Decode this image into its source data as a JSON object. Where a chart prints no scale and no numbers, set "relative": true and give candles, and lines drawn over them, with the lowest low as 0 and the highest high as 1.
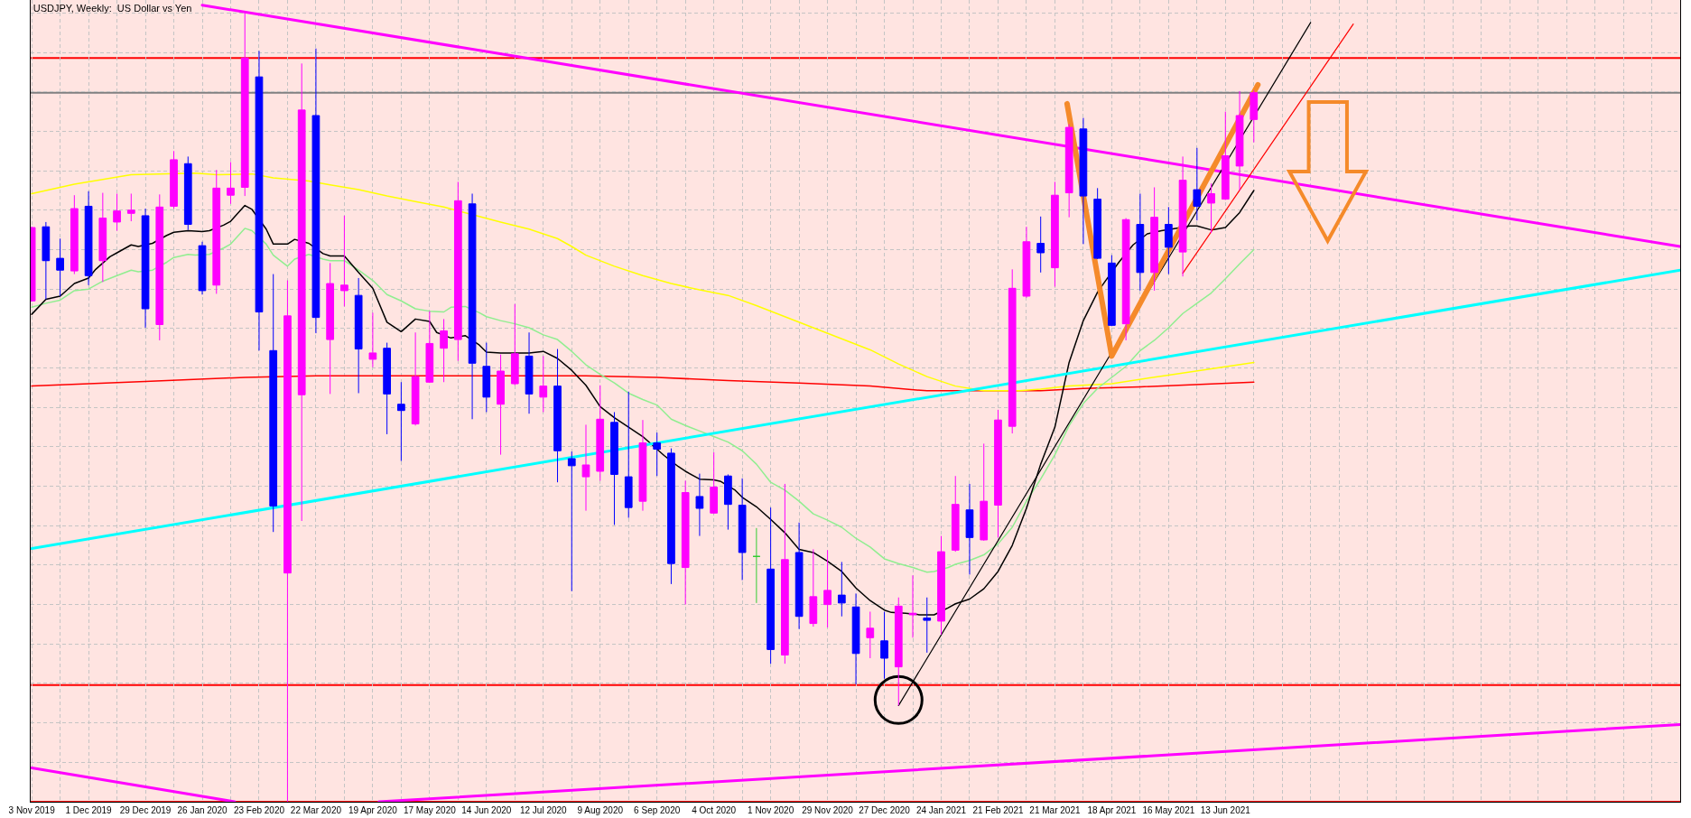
{
  "chart_data": {
    "type": "candlestick",
    "title": "USDJPY, Weekly:  US Dollar vs Yen",
    "relative": true,
    "grid": true,
    "tick_labels": "x",
    "xlim": [
      "2019-11-02T12:00",
      "2022-01-23"
    ],
    "xticks": [
      {
        "value": "2019-11-03",
        "label": "3 Nov 2019"
      },
      {
        "value": "2019-11-17",
        "label": null
      },
      {
        "value": "2019-12-01",
        "label": "1 Dec 2019"
      },
      {
        "value": "2019-12-15",
        "label": null
      },
      {
        "value": "2019-12-29",
        "label": "29 Dec 2019"
      },
      {
        "value": "2020-01-12",
        "label": null
      },
      {
        "value": "2020-01-26",
        "label": "26 Jan 2020"
      },
      {
        "value": "2020-02-09",
        "label": null
      },
      {
        "value": "2020-02-23",
        "label": "23 Feb 2020"
      },
      {
        "value": "2020-03-08",
        "label": null
      },
      {
        "value": "2020-03-22",
        "label": "22 Mar 2020"
      },
      {
        "value": "2020-04-05",
        "label": null
      },
      {
        "value": "2020-04-19",
        "label": "19 Apr 2020"
      },
      {
        "value": "2020-05-03",
        "label": null
      },
      {
        "value": "2020-05-17",
        "label": "17 May 2020"
      },
      {
        "value": "2020-05-31",
        "label": null
      },
      {
        "value": "2020-06-14",
        "label": "14 Jun 2020"
      },
      {
        "value": "2020-06-28",
        "label": null
      },
      {
        "value": "2020-07-12",
        "label": "12 Jul 2020"
      },
      {
        "value": "2020-07-26",
        "label": null
      },
      {
        "value": "2020-08-09",
        "label": "9 Aug 2020"
      },
      {
        "value": "2020-08-23",
        "label": null
      },
      {
        "value": "2020-09-06",
        "label": "6 Sep 2020"
      },
      {
        "value": "2020-09-20",
        "label": null
      },
      {
        "value": "2020-10-04",
        "label": "4 Oct 2020"
      },
      {
        "value": "2020-10-18",
        "label": null
      },
      {
        "value": "2020-11-01",
        "label": "1 Nov 2020"
      },
      {
        "value": "2020-11-15",
        "label": null
      },
      {
        "value": "2020-11-29",
        "label": "29 Nov 2020"
      },
      {
        "value": "2020-12-13",
        "label": null
      },
      {
        "value": "2020-12-27",
        "label": "27 Dec 2020"
      },
      {
        "value": "2021-01-10",
        "label": null
      },
      {
        "value": "2021-01-24",
        "label": "24 Jan 2021"
      },
      {
        "value": "2021-02-07",
        "label": null
      },
      {
        "value": "2021-02-21",
        "label": "21 Feb 2021"
      },
      {
        "value": "2021-03-07",
        "label": null
      },
      {
        "value": "2021-03-21",
        "label": "21 Mar 2021"
      },
      {
        "value": "2021-04-04",
        "label": null
      },
      {
        "value": "2021-04-18",
        "label": "18 Apr 2021"
      },
      {
        "value": "2021-05-02",
        "label": null
      },
      {
        "value": "2021-05-16",
        "label": "16 May 2021"
      },
      {
        "value": "2021-05-30",
        "label": null
      },
      {
        "value": "2021-06-13",
        "label": "13 Jun 2021"
      },
      {
        "value": "2021-06-27",
        "label": null
      },
      {
        "value": "2021-07-11",
        "label": null
      },
      {
        "value": "2021-07-25",
        "label": null
      },
      {
        "value": "2021-08-08",
        "label": null
      },
      {
        "value": "2021-08-22",
        "label": null
      },
      {
        "value": "2021-09-05",
        "label": null
      },
      {
        "value": "2021-09-19",
        "label": null
      },
      {
        "value": "2021-10-03",
        "label": null
      },
      {
        "value": "2021-10-17",
        "label": null
      },
      {
        "value": "2021-10-31",
        "label": null
      },
      {
        "value": "2021-11-14",
        "label": null
      },
      {
        "value": "2021-11-28",
        "label": null
      },
      {
        "value": "2021-12-12",
        "label": null
      },
      {
        "value": "2021-12-26",
        "label": null
      },
      {
        "value": "2022-01-09",
        "label": null
      }
    ],
    "x": [
      "2019-11-03",
      "2019-11-10",
      "2019-11-17",
      "2019-11-24",
      "2019-12-01",
      "2019-12-08",
      "2019-12-15",
      "2019-12-22",
      "2019-12-29",
      "2020-01-05",
      "2020-01-12",
      "2020-01-19",
      "2020-01-26",
      "2020-02-02",
      "2020-02-09",
      "2020-02-16",
      "2020-02-23",
      "2020-03-01",
      "2020-03-08",
      "2020-03-15",
      "2020-03-22",
      "2020-03-29",
      "2020-04-05",
      "2020-04-12",
      "2020-04-19",
      "2020-04-26",
      "2020-05-03",
      "2020-05-10",
      "2020-05-17",
      "2020-05-24",
      "2020-05-31",
      "2020-06-07",
      "2020-06-14",
      "2020-06-21",
      "2020-06-28",
      "2020-07-05",
      "2020-07-12",
      "2020-07-19",
      "2020-07-26",
      "2020-08-02",
      "2020-08-09",
      "2020-08-16",
      "2020-08-23",
      "2020-08-30",
      "2020-09-06",
      "2020-09-13",
      "2020-09-20",
      "2020-09-27",
      "2020-10-04",
      "2020-10-11",
      "2020-10-18",
      "2020-10-25",
      "2020-11-01",
      "2020-11-08",
      "2020-11-15",
      "2020-11-22",
      "2020-11-29",
      "2020-12-06",
      "2020-12-13",
      "2020-12-20",
      "2020-12-27",
      "2021-01-03",
      "2021-01-10",
      "2021-01-17",
      "2021-01-24",
      "2021-01-31",
      "2021-02-07",
      "2021-02-14",
      "2021-02-21",
      "2021-02-28",
      "2021-03-07",
      "2021-03-14",
      "2021-03-21",
      "2021-03-28",
      "2021-04-04",
      "2021-04-11",
      "2021-04-18",
      "2021-04-25",
      "2021-05-02",
      "2021-05-09",
      "2021-05-16",
      "2021-05-23",
      "2021-05-30",
      "2021-06-06",
      "2021-06-13",
      "2021-06-20",
      "2021-06-27"
    ],
    "ohlc": [
      [
        0.635,
        0.729,
        0.634,
        0.728
      ],
      [
        0.729,
        0.735,
        0.637,
        0.686
      ],
      [
        0.689,
        0.714,
        0.641,
        0.674
      ],
      [
        0.673,
        0.769,
        0.669,
        0.752
      ],
      [
        0.755,
        0.774,
        0.655,
        0.667
      ],
      [
        0.686,
        0.772,
        0.659,
        0.74
      ],
      [
        0.735,
        0.771,
        0.724,
        0.749
      ],
      [
        0.746,
        0.771,
        0.736,
        0.75
      ],
      [
        0.743,
        0.752,
        0.601,
        0.625
      ],
      [
        0.605,
        0.77,
        0.585,
        0.754
      ],
      [
        0.755,
        0.825,
        0.752,
        0.814
      ],
      [
        0.809,
        0.818,
        0.725,
        0.732
      ],
      [
        0.705,
        0.71,
        0.643,
        0.648
      ],
      [
        0.655,
        0.801,
        0.644,
        0.778
      ],
      [
        0.769,
        0.811,
        0.758,
        0.778
      ],
      [
        0.779,
        1.0,
        0.768,
        0.943
      ],
      [
        0.919,
        0.952,
        0.572,
        0.621
      ],
      [
        0.572,
        0.669,
        0.342,
        0.375
      ],
      [
        0.29,
        0.661,
        0.0,
        0.616
      ],
      [
        0.516,
        0.936,
        0.356,
        0.877
      ],
      [
        0.87,
        0.955,
        0.594,
        0.614
      ],
      [
        0.586,
        0.683,
        0.517,
        0.657
      ],
      [
        0.648,
        0.743,
        0.628,
        0.655
      ],
      [
        0.642,
        0.664,
        0.518,
        0.574
      ],
      [
        0.561,
        0.62,
        0.551,
        0.569
      ],
      [
        0.575,
        0.582,
        0.466,
        0.517
      ],
      [
        0.504,
        0.532,
        0.432,
        0.496
      ],
      [
        0.479,
        0.595,
        0.477,
        0.539
      ],
      [
        0.532,
        0.622,
        0.531,
        0.581
      ],
      [
        0.575,
        0.612,
        0.532,
        0.597
      ],
      [
        0.586,
        0.786,
        0.559,
        0.762
      ],
      [
        0.758,
        0.771,
        0.485,
        0.556
      ],
      [
        0.552,
        0.582,
        0.494,
        0.513
      ],
      [
        0.504,
        0.567,
        0.44,
        0.546
      ],
      [
        0.53,
        0.631,
        0.528,
        0.568
      ],
      [
        0.565,
        0.595,
        0.492,
        0.517
      ],
      [
        0.513,
        0.565,
        0.494,
        0.527
      ],
      [
        0.527,
        0.574,
        0.405,
        0.445
      ],
      [
        0.435,
        0.444,
        0.267,
        0.426
      ],
      [
        0.412,
        0.478,
        0.369,
        0.427
      ],
      [
        0.419,
        0.528,
        0.407,
        0.485
      ],
      [
        0.481,
        0.494,
        0.351,
        0.415
      ],
      [
        0.412,
        0.52,
        0.36,
        0.373
      ],
      [
        0.381,
        0.484,
        0.369,
        0.455
      ],
      [
        0.455,
        0.468,
        0.413,
        0.447
      ],
      [
        0.442,
        0.448,
        0.276,
        0.302
      ],
      [
        0.297,
        0.407,
        0.25,
        0.392
      ],
      [
        0.387,
        0.416,
        0.337,
        0.372
      ],
      [
        0.366,
        0.443,
        0.365,
        0.399
      ],
      [
        0.413,
        0.415,
        0.345,
        0.377
      ],
      [
        0.376,
        0.41,
        0.281,
        0.316
      ],
      [
        0.311,
        0.347,
        0.252,
        0.311
      ],
      [
        0.295,
        0.373,
        0.175,
        0.193
      ],
      [
        0.186,
        0.403,
        0.175,
        0.307
      ],
      [
        0.316,
        0.354,
        0.219,
        0.235
      ],
      [
        0.226,
        0.32,
        0.222,
        0.26
      ],
      [
        0.25,
        0.319,
        0.221,
        0.268
      ],
      [
        0.262,
        0.304,
        0.235,
        0.252
      ],
      [
        0.247,
        0.264,
        0.149,
        0.188
      ],
      [
        0.208,
        0.241,
        0.182,
        0.22
      ],
      [
        0.204,
        0.241,
        0.156,
        0.182
      ],
      [
        0.171,
        0.259,
        0.122,
        0.248
      ],
      [
        0.237,
        0.287,
        0.208,
        0.239
      ],
      [
        0.233,
        0.259,
        0.189,
        0.23
      ],
      [
        0.229,
        0.337,
        0.212,
        0.317
      ],
      [
        0.319,
        0.413,
        0.317,
        0.377
      ],
      [
        0.37,
        0.403,
        0.288,
        0.335
      ],
      [
        0.332,
        0.454,
        0.331,
        0.381
      ],
      [
        0.376,
        0.497,
        0.335,
        0.484
      ],
      [
        0.476,
        0.675,
        0.467,
        0.651
      ],
      [
        0.641,
        0.729,
        0.639,
        0.71
      ],
      [
        0.708,
        0.742,
        0.671,
        0.696
      ],
      [
        0.677,
        0.786,
        0.653,
        0.769
      ],
      [
        0.772,
        0.859,
        0.741,
        0.855
      ],
      [
        0.853,
        0.867,
        0.707,
        0.768
      ],
      [
        0.764,
        0.778,
        0.688,
        0.689
      ],
      [
        0.683,
        0.693,
        0.603,
        0.604
      ],
      [
        0.606,
        0.74,
        0.585,
        0.738
      ],
      [
        0.732,
        0.771,
        0.648,
        0.671
      ],
      [
        0.671,
        0.779,
        0.648,
        0.741
      ],
      [
        0.732,
        0.754,
        0.669,
        0.703
      ],
      [
        0.697,
        0.818,
        0.666,
        0.788
      ],
      [
        0.776,
        0.829,
        0.737,
        0.755
      ],
      [
        0.759,
        0.784,
        0.721,
        0.771
      ],
      [
        0.764,
        0.875,
        0.763,
        0.819
      ],
      [
        0.806,
        0.901,
        0.775,
        0.87
      ],
      [
        0.865,
        0.902,
        0.836,
        0.899
      ]
    ],
    "colors": [
      "#ff00ff",
      "#0000ff",
      "#0000ff",
      "#ff00ff",
      "#0000ff",
      "#ff00ff",
      "#ff00ff",
      "#ff00ff",
      "#0000ff",
      "#ff00ff",
      "#ff00ff",
      "#0000ff",
      "#0000ff",
      "#ff00ff",
      "#ff00ff",
      "#ff00ff",
      "#0000ff",
      "#0000ff",
      "#ff00ff",
      "#ff00ff",
      "#0000ff",
      "#ff00ff",
      "#ff00ff",
      "#0000ff",
      "#ff00ff",
      "#0000ff",
      "#0000ff",
      "#ff00ff",
      "#ff00ff",
      "#ff00ff",
      "#ff00ff",
      "#0000ff",
      "#0000ff",
      "#ff00ff",
      "#ff00ff",
      "#0000ff",
      "#ff00ff",
      "#0000ff",
      "#0000ff",
      "#ff00ff",
      "#ff00ff",
      "#0000ff",
      "#0000ff",
      "#ff00ff",
      "#0000ff",
      "#0000ff",
      "#ff00ff",
      "#0000ff",
      "#ff00ff",
      "#0000ff",
      "#0000ff",
      "#33cc33",
      "#0000ff",
      "#ff00ff",
      "#0000ff",
      "#ff00ff",
      "#ff00ff",
      "#0000ff",
      "#0000ff",
      "#ff00ff",
      "#0000ff",
      "#ff00ff",
      "#ff00ff",
      "#0000ff",
      "#ff00ff",
      "#ff00ff",
      "#0000ff",
      "#ff00ff",
      "#ff00ff",
      "#ff00ff",
      "#ff00ff",
      "#0000ff",
      "#ff00ff",
      "#ff00ff",
      "#0000ff",
      "#0000ff",
      "#0000ff",
      "#ff00ff",
      "#0000ff",
      "#ff00ff",
      "#0000ff",
      "#ff00ff",
      "#0000ff",
      "#ff00ff",
      "#ff00ff",
      "#ff00ff",
      "#ff00ff"
    ],
    "series": [
      {
        "type": "line",
        "color": "#ff0000",
        "x": [
          "2019-11-03",
          "2019-12-29",
          "2020-02-16",
          "2020-03-22",
          "2020-04-29T12:00",
          "2020-05-31",
          "2020-08-02",
          "2020-09-06",
          "2020-10-11",
          "2020-11-15",
          "2020-12-20",
          "2021-01-17",
          "2021-03-14",
          "2021-04-04",
          "2021-05-02",
          "2021-06-27"
        ],
        "values": [
          0.527,
          0.533,
          0.538,
          0.54,
          0.54,
          0.54,
          0.54,
          0.538,
          0.534,
          0.531,
          0.527,
          0.521,
          0.521,
          0.524,
          0.526,
          0.532
        ]
      },
      {
        "type": "line",
        "color": "#ffff00",
        "x": [
          "2019-11-03",
          "2019-11-24",
          "2019-12-08",
          "2019-12-22",
          "2020-01-05",
          "2020-01-22T12:00",
          "2020-02-02",
          "2020-02-19T12:00",
          "2020-03-01",
          "2020-03-18T12:00",
          "2020-03-29",
          "2020-04-12",
          "2020-04-26",
          "2020-05-10",
          "2020-05-24",
          "2020-06-10T12:00",
          "2020-06-21",
          "2020-07-05",
          "2020-07-19",
          "2020-07-26",
          "2020-08-02",
          "2020-08-16",
          "2020-08-30",
          "2020-09-13",
          "2020-09-27",
          "2020-10-11",
          "2020-10-25",
          "2020-11-08",
          "2020-11-22",
          "2020-12-06",
          "2020-12-20",
          "2021-01-03",
          "2021-01-17",
          "2021-01-31",
          "2021-02-14",
          "2021-03-03T12:00",
          "2021-03-14",
          "2021-03-28",
          "2021-04-18",
          "2021-05-16",
          "2021-06-06",
          "2021-06-27"
        ],
        "values": [
          0.771,
          0.783,
          0.789,
          0.795,
          0.796,
          0.797,
          0.795,
          0.796,
          0.791,
          0.787,
          0.782,
          0.776,
          0.768,
          0.761,
          0.754,
          0.742,
          0.735,
          0.726,
          0.714,
          0.704,
          0.693,
          0.679,
          0.667,
          0.657,
          0.649,
          0.642,
          0.629,
          0.615,
          0.601,
          0.587,
          0.573,
          0.555,
          0.539,
          0.527,
          0.521,
          0.521,
          0.523,
          0.527,
          0.53,
          0.541,
          0.549,
          0.557
        ]
      },
      {
        "type": "line",
        "color": "#90ee90",
        "x": [
          "2019-11-03",
          "2019-11-10",
          "2019-11-17",
          "2019-11-24",
          "2019-12-01",
          "2019-12-08",
          "2019-12-15",
          "2019-12-22",
          "2019-12-25T12:00",
          "2020-01-01T12:00",
          "2020-01-08T12:00",
          "2020-01-12",
          "2020-01-19",
          "2020-01-22T12:00",
          "2020-01-29T12:00",
          "2020-02-05T12:00",
          "2020-02-09",
          "2020-02-16",
          "2020-02-19T12:00",
          "2020-02-26T12:00",
          "2020-03-01",
          "2020-03-08",
          "2020-03-11T12:00",
          "2020-03-18T12:00",
          "2020-03-25T12:00",
          "2020-03-29",
          "2020-04-05",
          "2020-04-12",
          "2020-04-19",
          "2020-04-26",
          "2020-05-03",
          "2020-05-10",
          "2020-05-17",
          "2020-05-24",
          "2020-05-27T12:00",
          "2020-06-03T12:00",
          "2020-06-10T12:00",
          "2020-06-14",
          "2020-06-21",
          "2020-06-28",
          "2020-07-05",
          "2020-07-12",
          "2020-07-19",
          "2020-07-26",
          "2020-08-02",
          "2020-08-09",
          "2020-08-16",
          "2020-08-23",
          "2020-08-30",
          "2020-09-06",
          "2020-09-13",
          "2020-09-20",
          "2020-09-27",
          "2020-10-04",
          "2020-10-11",
          "2020-10-18",
          "2020-10-25",
          "2020-11-01",
          "2020-11-08",
          "2020-11-15",
          "2020-11-22",
          "2020-11-29",
          "2020-12-06",
          "2020-12-13",
          "2020-12-20",
          "2020-12-27",
          "2021-01-03",
          "2021-01-10",
          "2021-01-17",
          "2021-01-20T12:00",
          "2021-01-27T12:00",
          "2021-01-31",
          "2021-02-07",
          "2021-02-14",
          "2021-02-21",
          "2021-02-28",
          "2021-03-07",
          "2021-03-14",
          "2021-03-21",
          "2021-03-28",
          "2021-04-04",
          "2021-04-11",
          "2021-04-18",
          "2021-04-25",
          "2021-05-02",
          "2021-05-09",
          "2021-05-16",
          "2021-05-23",
          "2021-05-30",
          "2021-06-06",
          "2021-06-13",
          "2021-06-20",
          "2021-06-27"
        ],
        "values": [
          0.627,
          0.632,
          0.636,
          0.648,
          0.65,
          0.66,
          0.667,
          0.674,
          0.672,
          0.674,
          0.684,
          0.69,
          0.694,
          0.693,
          0.694,
          0.702,
          0.707,
          0.727,
          0.724,
          0.707,
          0.693,
          0.679,
          0.688,
          0.694,
          0.688,
          0.686,
          0.686,
          0.674,
          0.661,
          0.643,
          0.635,
          0.625,
          0.622,
          0.621,
          0.627,
          0.628,
          0.62,
          0.615,
          0.61,
          0.606,
          0.601,
          0.592,
          0.586,
          0.571,
          0.554,
          0.542,
          0.531,
          0.518,
          0.51,
          0.503,
          0.485,
          0.477,
          0.47,
          0.463,
          0.456,
          0.445,
          0.428,
          0.405,
          0.395,
          0.381,
          0.365,
          0.357,
          0.348,
          0.334,
          0.323,
          0.308,
          0.302,
          0.297,
          0.291,
          0.292,
          0.297,
          0.301,
          0.306,
          0.313,
          0.327,
          0.348,
          0.381,
          0.409,
          0.44,
          0.477,
          0.505,
          0.524,
          0.538,
          0.552,
          0.572,
          0.585,
          0.601,
          0.619,
          0.632,
          0.645,
          0.663,
          0.682,
          0.7
        ]
      },
      {
        "type": "line",
        "color": "#000000",
        "x": [
          "2019-11-03",
          "2019-11-10",
          "2019-11-17",
          "2019-11-24",
          "2019-12-01",
          "2019-12-04T12:00",
          "2019-12-11T12:00",
          "2019-12-15",
          "2019-12-22",
          "2019-12-25T12:00",
          "2020-01-01T12:00",
          "2020-01-08T12:00",
          "2020-01-12",
          "2020-01-19",
          "2020-01-26",
          "2020-01-29T12:00",
          "2020-02-05T12:00",
          "2020-02-09",
          "2020-02-16",
          "2020-02-19T12:00",
          "2020-02-26T12:00",
          "2020-03-01",
          "2020-03-08",
          "2020-03-11T12:00",
          "2020-03-18T12:00",
          "2020-03-25T12:00",
          "2020-03-29",
          "2020-04-05",
          "2020-04-12",
          "2020-04-19",
          "2020-04-26",
          "2020-05-03",
          "2020-05-10",
          "2020-05-17",
          "2020-05-20T12:00",
          "2020-05-27T12:00",
          "2020-06-03T12:00",
          "2020-06-10T12:00",
          "2020-06-14",
          "2020-06-21",
          "2020-06-24T12:00",
          "2020-07-01T12:00",
          "2020-07-05",
          "2020-07-12",
          "2020-07-19",
          "2020-07-26",
          "2020-08-02",
          "2020-08-09",
          "2020-08-16",
          "2020-08-23",
          "2020-08-30",
          "2020-09-02T12:00",
          "2020-09-09T12:00",
          "2020-09-16T12:00",
          "2020-09-20",
          "2020-09-27",
          "2020-10-04",
          "2020-10-07T12:00",
          "2020-10-14T12:00",
          "2020-10-18",
          "2020-10-25",
          "2020-11-01",
          "2020-11-08",
          "2020-11-15",
          "2020-11-22",
          "2020-11-29",
          "2020-12-06",
          "2020-12-13",
          "2020-12-20",
          "2020-12-27",
          "2020-12-30T12:00",
          "2021-01-06T12:00",
          "2021-01-13T12:00",
          "2021-01-20T12:00",
          "2021-01-27T12:00",
          "2021-01-31",
          "2021-02-07",
          "2021-02-14",
          "2021-02-21",
          "2021-02-28",
          "2021-03-07",
          "2021-03-14",
          "2021-03-21",
          "2021-03-28",
          "2021-04-04",
          "2021-04-11",
          "2021-04-14T12:00",
          "2021-04-21T12:00",
          "2021-04-28T12:00",
          "2021-05-05T12:00",
          "2021-05-12T12:00",
          "2021-05-19T12:00",
          "2021-05-26T12:00",
          "2021-05-30",
          "2021-06-06",
          "2021-06-13",
          "2021-06-20",
          "2021-06-27"
        ],
        "values": [
          0.618,
          0.637,
          0.641,
          0.657,
          0.664,
          0.675,
          0.691,
          0.696,
          0.706,
          0.704,
          0.708,
          0.718,
          0.722,
          0.724,
          0.723,
          0.724,
          0.731,
          0.736,
          0.756,
          0.751,
          0.726,
          0.707,
          0.707,
          0.713,
          0.708,
          0.695,
          0.692,
          0.692,
          0.671,
          0.651,
          0.608,
          0.596,
          0.612,
          0.609,
          0.595,
          0.588,
          0.591,
          0.579,
          0.57,
          0.569,
          0.569,
          0.569,
          0.569,
          0.571,
          0.562,
          0.547,
          0.528,
          0.501,
          0.487,
          0.475,
          0.463,
          0.455,
          0.439,
          0.425,
          0.419,
          0.409,
          0.408,
          0.406,
          0.395,
          0.386,
          0.374,
          0.358,
          0.341,
          0.32,
          0.316,
          0.305,
          0.292,
          0.271,
          0.255,
          0.243,
          0.24,
          0.239,
          0.237,
          0.237,
          0.246,
          0.251,
          0.257,
          0.27,
          0.292,
          0.325,
          0.372,
          0.428,
          0.475,
          0.557,
          0.61,
          0.646,
          0.659,
          0.684,
          0.706,
          0.72,
          0.724,
          0.727,
          0.73,
          0.73,
          0.725,
          0.728,
          0.747,
          0.775
        ]
      },
      {
        "type": "line",
        "color": "#ff00ff",
        "x": [
          "2020-01-26",
          "2022-01-23"
        ],
        "values": [
          1.01,
          0.704
        ]
      },
      {
        "type": "line",
        "color": "#ff00ff",
        "x": [
          "2019-11-03",
          "2020-02-11"
        ],
        "values": [
          0.043,
          0.0
        ]
      },
      {
        "type": "line",
        "color": "#ff00ff",
        "x": [
          "2020-04-22",
          "2022-01-23"
        ],
        "values": [
          0.0,
          0.098
        ]
      },
      {
        "type": "line",
        "color": "#00ffff",
        "x": [
          "2019-11-03",
          "2022-01-23"
        ],
        "values": [
          0.321,
          0.674
        ]
      },
      {
        "type": "line",
        "color": "#000000",
        "x": [
          "2021-01-03",
          "2021-07-25"
        ],
        "values": [
          0.122,
          0.988
        ]
      },
      {
        "type": "line",
        "color": "#ff0000",
        "x": [
          "2021-05-23",
          "2021-08-15"
        ],
        "values": [
          0.67,
          0.986
        ]
      },
      {
        "type": "line",
        "color": "#f58a2a",
        "x": [
          "2021-03-27",
          "2021-04-18",
          "2021-06-29"
        ],
        "values": [
          0.885,
          0.565,
          0.909
        ]
      },
      {
        "type": "scatter",
        "color": "#000000",
        "marker": "circle",
        "x": [
          "2021-01-03"
        ],
        "values": [
          0.129
        ]
      }
    ],
    "ref_lines": [
      {
        "axis": "y",
        "value": 0.943,
        "color": "#ff0000"
      },
      {
        "axis": "y",
        "value": 0.899,
        "color": "#808080"
      },
      {
        "axis": "y",
        "value": 0.148,
        "color": "#ff0000"
      },
      {
        "axis": "y",
        "value": 0,
        "color": "#ff0000"
      }
    ]
  }
}
